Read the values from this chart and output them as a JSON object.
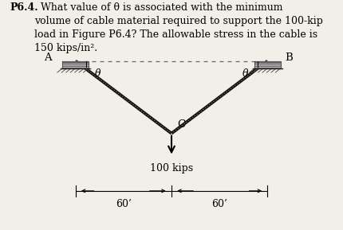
{
  "bg_color": "#f2efe9",
  "text_color": "#000000",
  "fig_width": 4.3,
  "fig_height": 2.89,
  "dpi": 100,
  "support_A": [
    0.22,
    0.735
  ],
  "support_B": [
    0.78,
    0.735
  ],
  "point_C": [
    0.5,
    0.42
  ],
  "label_A": "A",
  "label_B": "B",
  "label_C": "C",
  "label_theta": "θ",
  "load_label": "100 kips",
  "dim_label_left": "60’",
  "dim_label_right": "60’",
  "cable_color": "#111111",
  "cable_linewidth": 2.8,
  "cable_linewidth2": 1.2,
  "dashed_color": "#666666",
  "dashed_linewidth": 0.9,
  "title_bold": "P6.4.",
  "title_rest": "  What value of θ is associated with the minimum\nvolume of cable material required to support the 100-kip\nload in Figure P6.4? The allowable stress in the cable is\n150 kips/in².",
  "title_fontsize": 9.0
}
